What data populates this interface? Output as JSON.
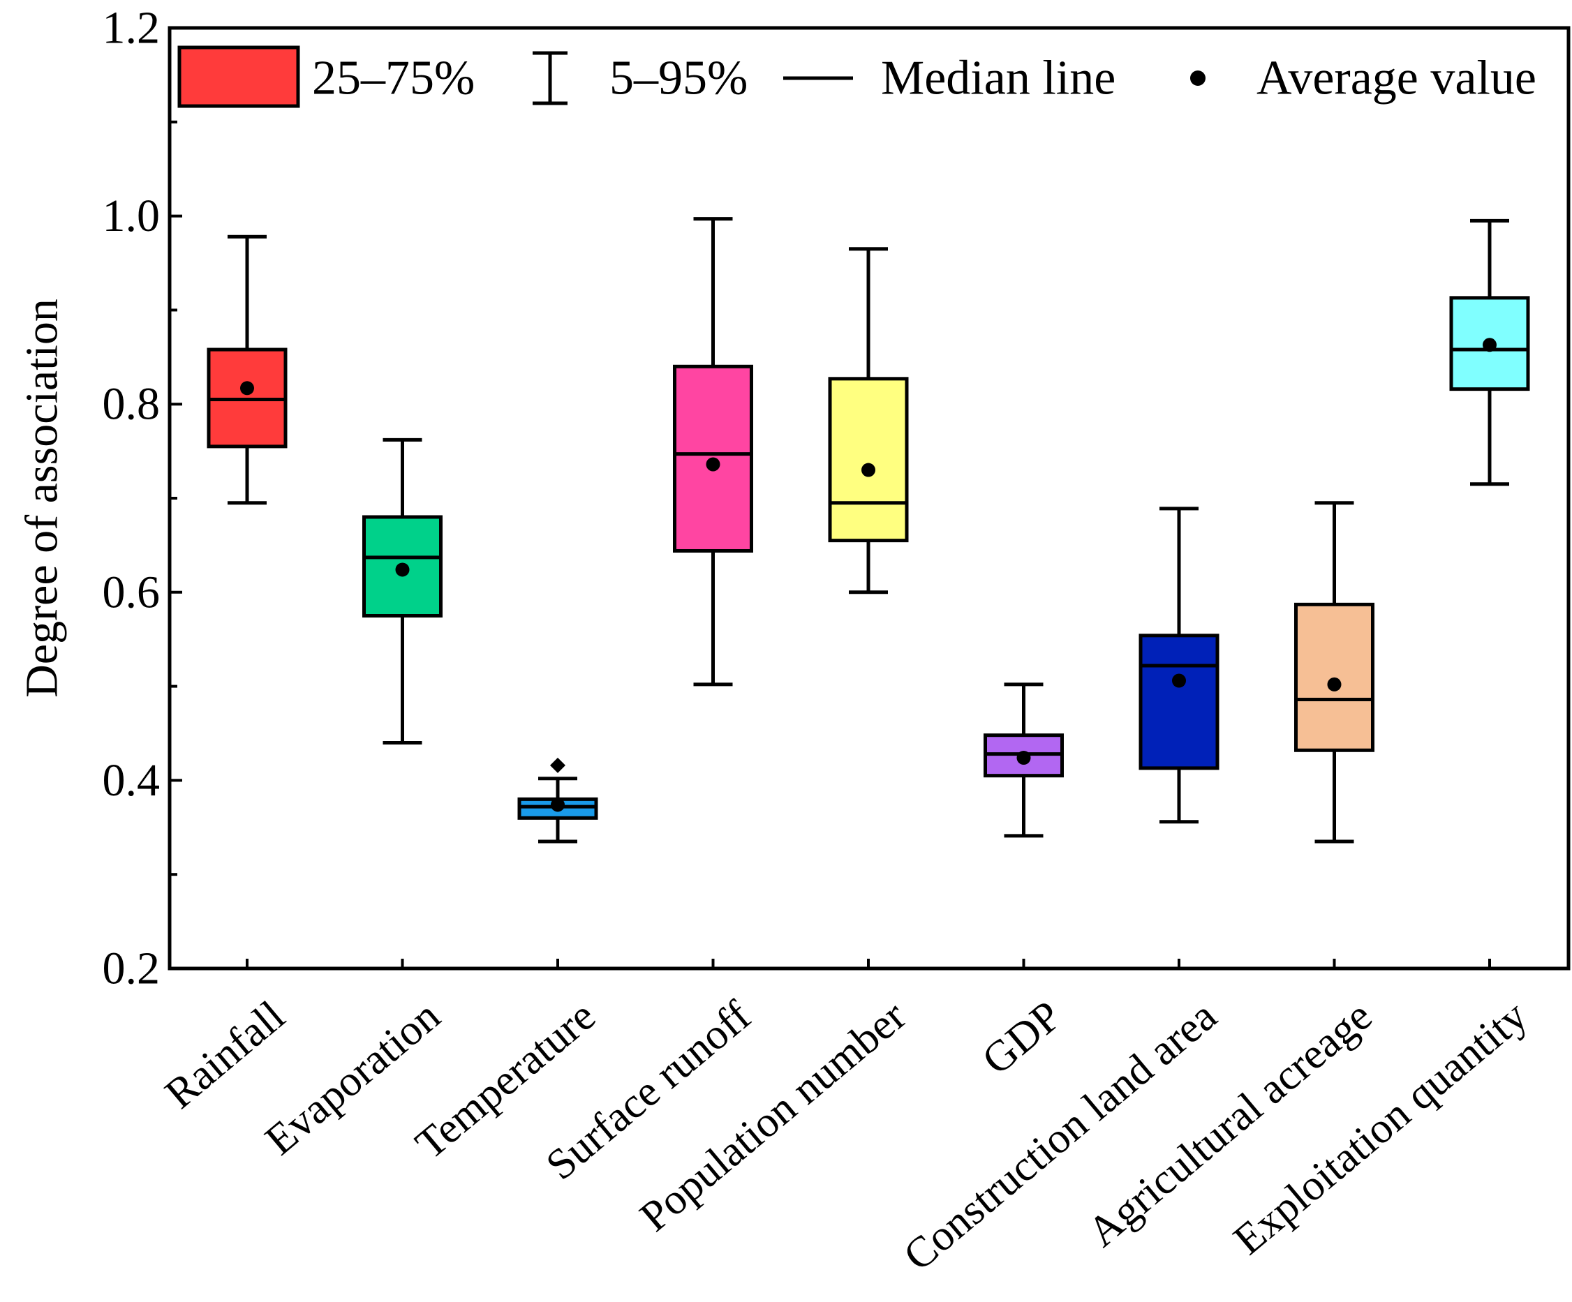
{
  "chart_data": {
    "type": "box",
    "ylabel": "Degree of association",
    "xlabel": "",
    "ylim": [
      0.2,
      1.2
    ],
    "yticks": [
      "0.2",
      "0.4",
      "0.6",
      "0.8",
      "1.0",
      "1.2"
    ],
    "legend": {
      "placement": "top",
      "items": [
        {
          "key": "box",
          "label": "25–75%"
        },
        {
          "key": "whisker",
          "label": "5–95%"
        },
        {
          "key": "median",
          "label": "Median line"
        },
        {
          "key": "mean",
          "label": "Average value"
        }
      ]
    },
    "series": [
      {
        "name": "Rainfall",
        "color": "#ff3b3b",
        "whisker_low": 0.695,
        "q1": 0.755,
        "median": 0.805,
        "q3": 0.858,
        "whisker_high": 0.978,
        "mean": 0.817,
        "outliers": []
      },
      {
        "name": "Evaporation",
        "color": "#00d18a",
        "whisker_low": 0.44,
        "q1": 0.575,
        "median": 0.637,
        "q3": 0.68,
        "whisker_high": 0.762,
        "mean": 0.624,
        "outliers": []
      },
      {
        "name": "Temperature",
        "color": "#1a9bea",
        "whisker_low": 0.335,
        "q1": 0.36,
        "median": 0.372,
        "q3": 0.38,
        "whisker_high": 0.402,
        "mean": 0.374,
        "outliers": [
          0.416
        ]
      },
      {
        "name": "Surface runoff",
        "color": "#ff45a2",
        "whisker_low": 0.502,
        "q1": 0.644,
        "median": 0.747,
        "q3": 0.84,
        "whisker_high": 0.997,
        "mean": 0.736,
        "outliers": []
      },
      {
        "name": "Population number",
        "color": "#ffff80",
        "whisker_low": 0.6,
        "q1": 0.655,
        "median": 0.695,
        "q3": 0.827,
        "whisker_high": 0.965,
        "mean": 0.73,
        "outliers": []
      },
      {
        "name": "GDP",
        "color": "#b267f2",
        "whisker_low": 0.341,
        "q1": 0.405,
        "median": 0.428,
        "q3": 0.448,
        "whisker_high": 0.502,
        "mean": 0.424,
        "outliers": []
      },
      {
        "name": "Construction land area",
        "color": "#0021b8",
        "whisker_low": 0.356,
        "q1": 0.413,
        "median": 0.522,
        "q3": 0.554,
        "whisker_high": 0.689,
        "mean": 0.506,
        "outliers": []
      },
      {
        "name": "Agricultural acreage",
        "color": "#f6bf95",
        "whisker_low": 0.335,
        "q1": 0.432,
        "median": 0.486,
        "q3": 0.587,
        "whisker_high": 0.695,
        "mean": 0.502,
        "outliers": []
      },
      {
        "name": "Exploitation quantity",
        "color": "#80ffff",
        "whisker_low": 0.715,
        "q1": 0.816,
        "median": 0.858,
        "q3": 0.913,
        "whisker_high": 0.995,
        "mean": 0.863,
        "outliers": []
      }
    ]
  }
}
